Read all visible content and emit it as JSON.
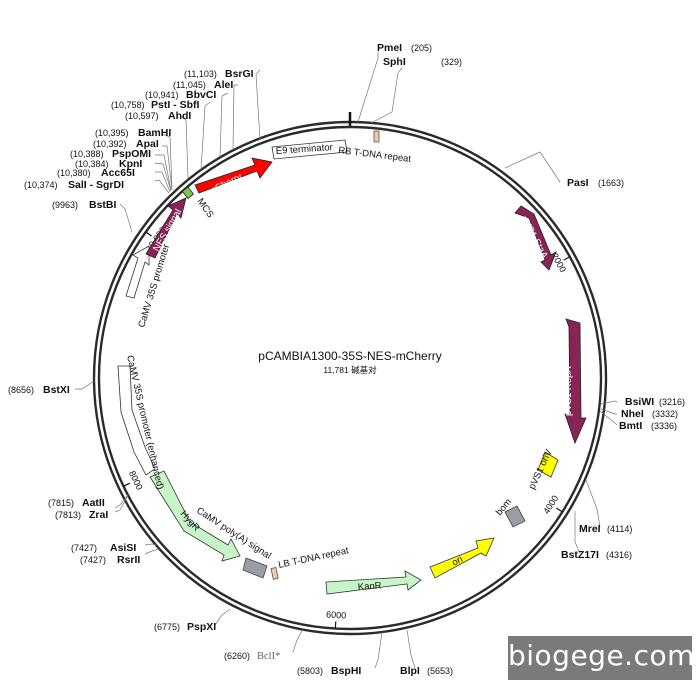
{
  "plasmid": {
    "name": "pCAMBIA1300-35S-NES-mCherry",
    "size_label": "11,781 碱基对",
    "total_bp": 11781
  },
  "scale_ticks": [
    {
      "bp": 2000,
      "label": "2000"
    },
    {
      "bp": 4000,
      "label": "4000"
    },
    {
      "bp": 6000,
      "label": "6000"
    },
    {
      "bp": 8000,
      "label": "8000"
    },
    {
      "bp": 10000,
      "label": "10,000"
    }
  ],
  "sites": [
    {
      "name": "PmeI",
      "pos": "(205)",
      "bp": 205
    },
    {
      "name": "SphI",
      "pos": "(329)",
      "bp": 329
    },
    {
      "name": "PasI",
      "pos": "(1663)",
      "bp": 1663
    },
    {
      "name": "BsiWI",
      "pos": "(3216)",
      "bp": 3216
    },
    {
      "name": "NheI",
      "pos": "(3332)",
      "bp": 3332
    },
    {
      "name": "BmtI",
      "pos": "(3336)",
      "bp": 3336
    },
    {
      "name": "MreI",
      "pos": "(4114)",
      "bp": 4114
    },
    {
      "name": "BstZ17I",
      "pos": "(4316)",
      "bp": 4316
    },
    {
      "name": "BlpI",
      "pos": "(5653)",
      "bp": 5653
    },
    {
      "name": "BspHI",
      "pos": "(5803)",
      "bp": 5803
    },
    {
      "name": "BclI*",
      "pos": "(6260)",
      "bp": 6260,
      "muted": true
    },
    {
      "name": "PspXI",
      "pos": "(6775)",
      "bp": 6775
    },
    {
      "name": "RsrII",
      "pos": "(7427)",
      "bp": 7427
    },
    {
      "name": "AsiSI",
      "pos": "(7476)",
      "bp": 7476
    },
    {
      "name": "ZraI",
      "pos": "(7813)",
      "bp": 7813
    },
    {
      "name": "AatII",
      "pos": "(7815)",
      "bp": 7815
    },
    {
      "name": "BstXI",
      "pos": "(8656)",
      "bp": 8656
    },
    {
      "name": "BstBI",
      "pos": "(9963)",
      "bp": 9963
    },
    {
      "name": "SalI - SgrDI",
      "pos": "(10,374)",
      "bp": 10374
    },
    {
      "name": "Acc65I",
      "pos": "(10,380)",
      "bp": 10380
    },
    {
      "name": "KpnI",
      "pos": "(10,384)",
      "bp": 10384
    },
    {
      "name": "PspOMI",
      "pos": "(10,388)",
      "bp": 10388
    },
    {
      "name": "ApaI",
      "pos": "(10,392)",
      "bp": 10392
    },
    {
      "name": "BamHI",
      "pos": "(10,395)",
      "bp": 10395
    },
    {
      "name": "AhdI",
      "pos": "(10,597)",
      "bp": 10597
    },
    {
      "name": "PstI - SbfI",
      "pos": "(10,758)",
      "bp": 10758
    },
    {
      "name": "BbvCI",
      "pos": "(10,941)",
      "bp": 10941
    },
    {
      "name": "AleI",
      "pos": "(11,045)",
      "bp": 11045
    },
    {
      "name": "BsrGI",
      "pos": "(11,103)",
      "bp": 11103
    }
  ],
  "features": [
    {
      "label": "E9 terminator",
      "color": "#ffffff",
      "direction": "cw"
    },
    {
      "label": "RB T-DNA repeat",
      "color": "#f2c9a8",
      "direction": "none"
    },
    {
      "label": "pVS1 StaA",
      "color": "#8a2357",
      "direction": "cw"
    },
    {
      "label": "pVS1 RepA",
      "color": "#8a2357",
      "direction": "cw"
    },
    {
      "label": "pVS1 oriV",
      "color": "#ffff00",
      "direction": "none"
    },
    {
      "label": "bom",
      "color": "#9a9ea4",
      "direction": "none"
    },
    {
      "label": "ori",
      "color": "#ffff00",
      "direction": "ccw"
    },
    {
      "label": "KanR",
      "color": "#c8f5c8",
      "direction": "ccw"
    },
    {
      "label": "LB T-DNA repeat",
      "color": "#f2c9a8",
      "direction": "none"
    },
    {
      "label": "CaMV poly(A) signal",
      "color": "#9a9ea4",
      "direction": "none"
    },
    {
      "label": "HygR",
      "color": "#c8f5c8",
      "direction": "ccw"
    },
    {
      "label": "CaMV 35S promoter (enhanced)",
      "color": "#ffffff",
      "direction": "ccw"
    },
    {
      "label": "CaMV 35S promoter",
      "color": "#ffffff",
      "direction": "cw"
    },
    {
      "label": "NES signal",
      "color": "#8a2357",
      "direction": "cw"
    },
    {
      "label": "MCS",
      "color": "#7ac943",
      "direction": "none"
    },
    {
      "label": "mCherry",
      "color": "#ff0000",
      "direction": "cw"
    }
  ],
  "colors": {
    "backbone": "#2b2b2b",
    "watermark_bg": "#7a7a7a"
  },
  "watermark": "biogege.com"
}
